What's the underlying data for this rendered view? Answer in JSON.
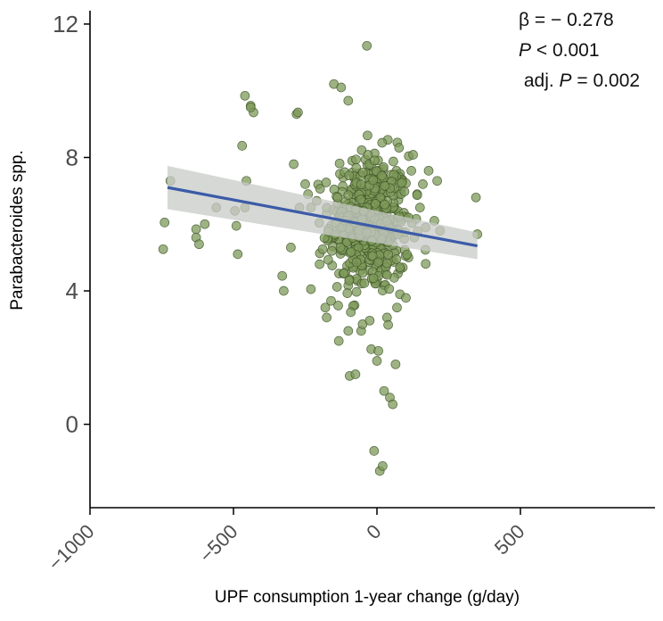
{
  "chart_data": {
    "type": "scatter",
    "xlabel": "UPF consumption 1-year change (g/day)",
    "ylabel": "Parabacteroides spp.",
    "xlim": [
      -1000,
      1000
    ],
    "ylim": [
      -2.5,
      12.4
    ],
    "xticks": [
      -1000,
      -500,
      0,
      500
    ],
    "xtick_labels": [
      "−1000",
      "−500",
      "0",
      "500"
    ],
    "yticks": [
      0,
      4,
      8,
      12
    ],
    "ytick_labels": [
      "0",
      "4",
      "8",
      "12"
    ],
    "point_color": "#7d9a5a",
    "point_edge": "#3d5226",
    "line_color": "#3b5ba8",
    "band_color": "#c8cbc8",
    "regression": {
      "x": [
        -730,
        350
      ],
      "y": [
        7.1,
        5.35
      ],
      "band_upper": [
        7.75,
        5.75
      ],
      "band_lower": [
        6.45,
        4.95
      ]
    },
    "stats": {
      "beta": "β = − 0.278",
      "p_symbol": "P",
      "p_value": " < 0.001",
      "adj_prefix": "adj. ",
      "adj_symbol": "P",
      "adj_value": " = 0.002"
    },
    "outliers": [
      [
        -740,
        6.05
      ],
      [
        -745,
        5.25
      ],
      [
        -720,
        7.3
      ],
      [
        -630,
        5.85
      ],
      [
        -630,
        5.6
      ],
      [
        -600,
        6.0
      ],
      [
        -620,
        5.4
      ],
      [
        -560,
        6.5
      ],
      [
        -495,
        6.4
      ],
      [
        -490,
        5.95
      ],
      [
        -485,
        5.1
      ],
      [
        -470,
        8.35
      ],
      [
        -460,
        9.85
      ],
      [
        -455,
        7.3
      ],
      [
        -460,
        6.5
      ],
      [
        -440,
        9.55
      ],
      [
        -430,
        9.35
      ],
      [
        -440,
        9.5
      ],
      [
        -330,
        4.45
      ],
      [
        -325,
        4.0
      ],
      [
        -300,
        5.3
      ],
      [
        -290,
        7.8
      ],
      [
        -280,
        9.3
      ],
      [
        -275,
        9.35
      ],
      [
        -270,
        6.5
      ],
      [
        -250,
        7.2
      ],
      [
        -240,
        6.9
      ],
      [
        -230,
        4.05
      ],
      [
        -210,
        6.7
      ],
      [
        -200,
        4.8
      ],
      [
        -180,
        3.5
      ],
      [
        -175,
        3.2
      ],
      [
        -160,
        3.7
      ],
      [
        -150,
        10.2
      ],
      [
        -125,
        10.1
      ],
      [
        -100,
        9.7
      ],
      [
        -100,
        2.8
      ],
      [
        -95,
        1.45
      ],
      [
        -75,
        1.5
      ],
      [
        -55,
        2.8
      ],
      [
        -50,
        3.0
      ],
      [
        -35,
        11.35
      ],
      [
        -20,
        2.25
      ],
      [
        -10,
        -0.8
      ],
      [
        0,
        1.9
      ],
      [
        5,
        2.2
      ],
      [
        10,
        -1.4
      ],
      [
        20,
        -1.25
      ],
      [
        25,
        1.0
      ],
      [
        35,
        3.2
      ],
      [
        45,
        0.8
      ],
      [
        55,
        0.6
      ],
      [
        65,
        1.8
      ],
      [
        70,
        3.5
      ],
      [
        80,
        3.9
      ],
      [
        90,
        4.7
      ],
      [
        110,
        5.0
      ],
      [
        120,
        7.6
      ],
      [
        130,
        5.6
      ],
      [
        140,
        6.9
      ],
      [
        150,
        6.5
      ],
      [
        160,
        7.2
      ],
      [
        170,
        5.9
      ],
      [
        180,
        7.6
      ],
      [
        200,
        6.1
      ],
      [
        210,
        7.3
      ],
      [
        220,
        5.8
      ],
      [
        345,
        6.8
      ],
      [
        350,
        5.7
      ]
    ]
  }
}
